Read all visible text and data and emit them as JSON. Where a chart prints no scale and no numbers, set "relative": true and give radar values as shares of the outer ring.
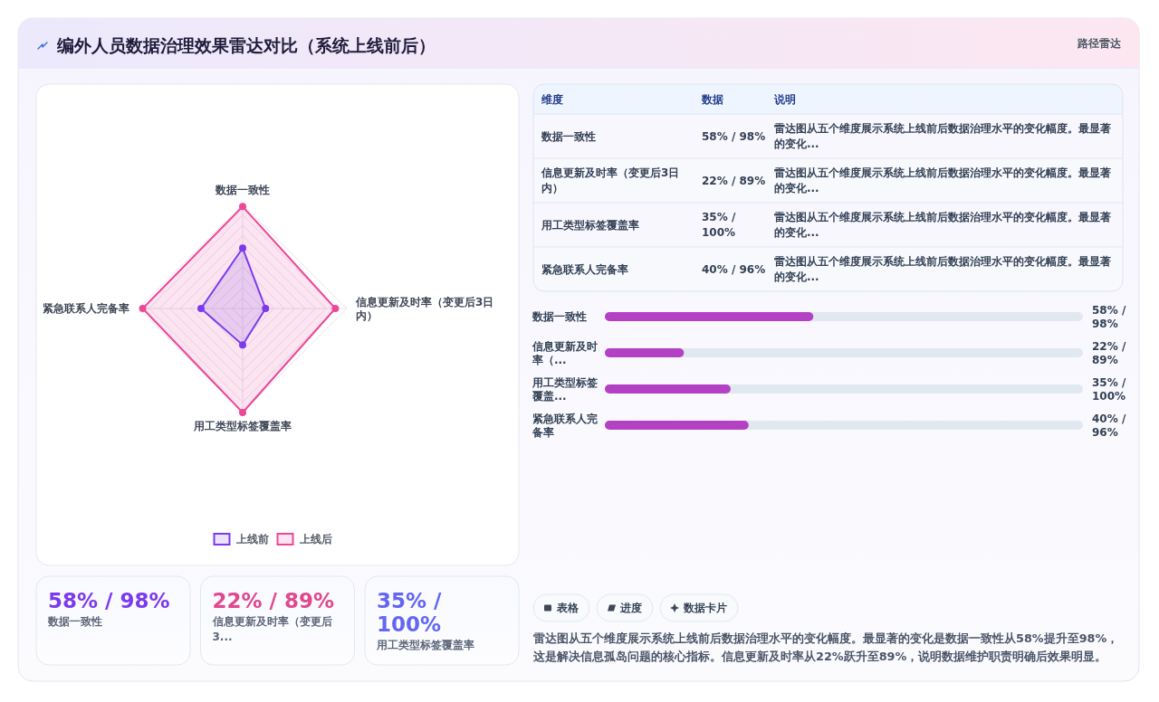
{
  "chart_data": [
    {
      "type": "radar",
      "title": "编外人员数据治理效果雷达对比（系统上线前后）",
      "relative": true,
      "categories": [
        "数据一致性",
        "信息更新及时率（变更后3日内）",
        "用工类型标签覆盖率",
        "紧急联系人完备率"
      ],
      "series": [
        {
          "name": "上线前",
          "color": "#7c3aed",
          "values": [
            0.58,
            0.22,
            0.35,
            0.4
          ]
        },
        {
          "name": "上线后",
          "color": "#ec4899",
          "values": [
            0.98,
            0.89,
            1,
            0.96
          ]
        }
      ],
      "grid": true,
      "legend": "bottom",
      "marker": "circle"
    },
    {
      "type": "other",
      "subtitle": "路径雷达",
      "categories": [
        "维度",
        "数据",
        "说明"
      ],
      "cell_labels": [
        [
          "数据一致性",
          "58% / 98%",
          "雷达图从五个维度展示系统上线前后数据治理水平的变化幅度。最显著的变化..."
        ],
        [
          "信息更新及时率（变更后3日内）",
          "22% / 89%",
          "雷达图从五个维度展示系统上线前后数据治理水平的变化幅度。最显著的变化..."
        ],
        [
          "用工类型标签覆盖率",
          "35% / 100%",
          "雷达图从五个维度展示系统上线前后数据治理水平的变化幅度。最显著的变化..."
        ],
        [
          "紧急联系人完备率",
          "40% / 96%",
          "雷达图从五个维度展示系统上线前后数据治理水平的变化幅度。最显著的变化..."
        ]
      ]
    },
    {
      "type": "bar",
      "orientation": "horizontal",
      "categories": [
        "数据一致性",
        "信息更新及时率（...",
        "用工类型标签覆盖...",
        "紧急联系人完备率"
      ],
      "values": [
        58,
        22,
        35,
        40
      ],
      "value_labels": [
        "58% / 98%",
        "22% / 89%",
        "35% / 100%",
        "40% / 96%"
      ],
      "xlim": [
        0,
        133
      ],
      "tick_labels": "y",
      "color": "#b441c3"
    },
    {
      "type": "other",
      "categories": [
        "数据一致性",
        "信息更新及时率（变更后3...",
        "用工类型标签覆盖率"
      ],
      "value_labels": [
        "58% / 98%",
        "22% / 89%",
        "35% / 100%"
      ]
    },
    {
      "type": "other",
      "categories": [
        "表格",
        "进度",
        "数据卡片"
      ],
      "annotations": [
        "雷达图从五个维度展示系统上线前后数据治理水平的变化幅度。最显著的变化是数据一致性从58%提升至98%，这是解决信息孤岛问题的核心指标。信息更新及时率从22%跃升至89%，说明数据维护职责明确后效果明显。"
      ]
    }
  ]
}
